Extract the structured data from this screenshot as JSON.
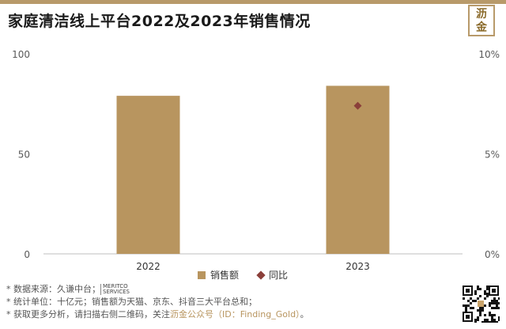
{
  "title": "家庭清洁线上平台2022及2023年销售情况",
  "brand_label": "沥金",
  "chart_data": {
    "type": "bar",
    "categories": [
      "2022",
      "2023"
    ],
    "series": [
      {
        "name": "销售额",
        "type": "bar",
        "axis": "left",
        "values": [
          79,
          84
        ],
        "color": "#b8955f"
      },
      {
        "name": "同比",
        "type": "scatter",
        "axis": "right",
        "values": [
          null,
          7.4
        ],
        "color": "#8b3f3a",
        "marker": "diamond"
      }
    ],
    "y_left": {
      "ticks": [
        "0",
        "50",
        "100"
      ],
      "ylim": [
        0,
        100
      ]
    },
    "y_right": {
      "ticks": [
        "0%",
        "5%",
        "10%"
      ],
      "ylim": [
        0,
        10
      ]
    },
    "grid": false,
    "legend_position": "bottom"
  },
  "notes": {
    "source_prefix": "* 数据来源：久谦中台；",
    "source_logo_a": "MERITCO",
    "source_logo_b": "SERVICES",
    "unit": "* 统计单位：十亿元；销售额为天猫、京东、抖音三大平台总和；",
    "contact_prefix": "* 获取更多分析，请扫描右侧二维码，关注",
    "contact_highlight": "沥金公众号（ID：Finding_Gold）",
    "contact_suffix": "。"
  }
}
